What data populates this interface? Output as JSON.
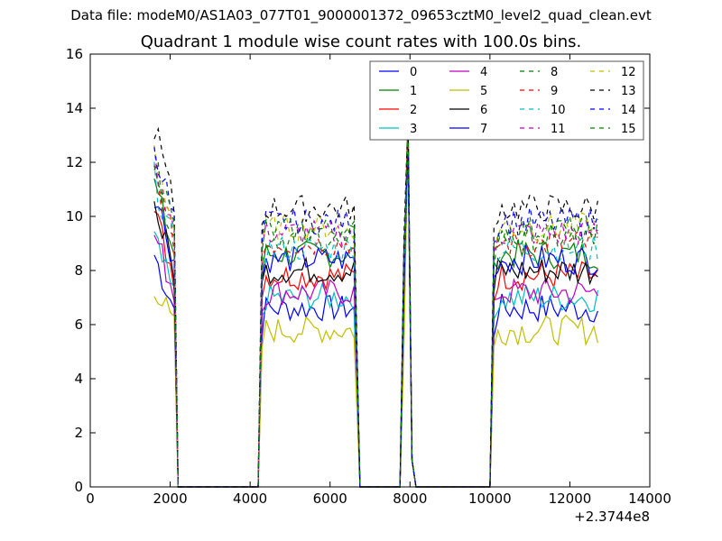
{
  "header": {
    "suptitle": "Data file: modeM0/AS1A03_077T01_9000001372_09653cztM0_level2_quad_clean.evt",
    "title": "Quadrant 1 module wise count rates with 100.0s bins."
  },
  "chart_data": {
    "type": "line",
    "title": "Quadrant 1 module wise count rates with 100.0s bins.",
    "xlabel": "",
    "ylabel": "",
    "x_offset_label": "+2.3744e8",
    "xlim": [
      0,
      14000
    ],
    "ylim": [
      0,
      16
    ],
    "xticks": [
      0,
      2000,
      4000,
      6000,
      8000,
      10000,
      12000,
      14000
    ],
    "yticks": [
      0,
      2,
      4,
      6,
      8,
      10,
      12,
      14,
      16
    ],
    "grid": false,
    "legend": {
      "placement": "top-right",
      "columns": 4
    },
    "segments": [
      {
        "x_start": 1600,
        "x_end": 2100,
        "base": 13.8,
        "ramp_down_to": 2200
      },
      {
        "x_start": 4300,
        "x_end": 6600,
        "ramp_up_from": 4200,
        "ramp_down_to": 6750
      },
      {
        "spike_center": 7950,
        "spike_peak": 14.0
      },
      {
        "x_start": 10100,
        "x_end": 12700,
        "ramp_up_from": 10000
      }
    ],
    "series": [
      {
        "name": "0",
        "color": "#0000ff",
        "style": "solid",
        "level": 6.6
      },
      {
        "name": "1",
        "color": "#008000",
        "style": "solid",
        "level": 8.6
      },
      {
        "name": "2",
        "color": "#ff0000",
        "style": "solid",
        "level": 7.8
      },
      {
        "name": "3",
        "color": "#00bfbf",
        "style": "solid",
        "level": 7.0
      },
      {
        "name": "4",
        "color": "#bf00bf",
        "style": "solid",
        "level": 7.2
      },
      {
        "name": "5",
        "color": "#bfbf00",
        "style": "solid",
        "level": 5.8
      },
      {
        "name": "6",
        "color": "#000000",
        "style": "solid",
        "level": 8.0
      },
      {
        "name": "7",
        "color": "#0000ff",
        "style": "solid",
        "level": 8.4
      },
      {
        "name": "8",
        "color": "#008000",
        "style": "dashed",
        "level": 9.2
      },
      {
        "name": "9",
        "color": "#ff0000",
        "style": "dashed",
        "level": 9.0
      },
      {
        "name": "10",
        "color": "#00bfbf",
        "style": "dashed",
        "level": 8.8
      },
      {
        "name": "11",
        "color": "#bf00bf",
        "style": "dashed",
        "level": 9.4
      },
      {
        "name": "12",
        "color": "#bfbf00",
        "style": "dashed",
        "level": 9.6
      },
      {
        "name": "13",
        "color": "#000000",
        "style": "dashed",
        "level": 10.3
      },
      {
        "name": "14",
        "color": "#0000ff",
        "style": "dashed",
        "level": 9.8
      },
      {
        "name": "15",
        "color": "#008000",
        "style": "dashed",
        "level": 9.5
      }
    ]
  }
}
